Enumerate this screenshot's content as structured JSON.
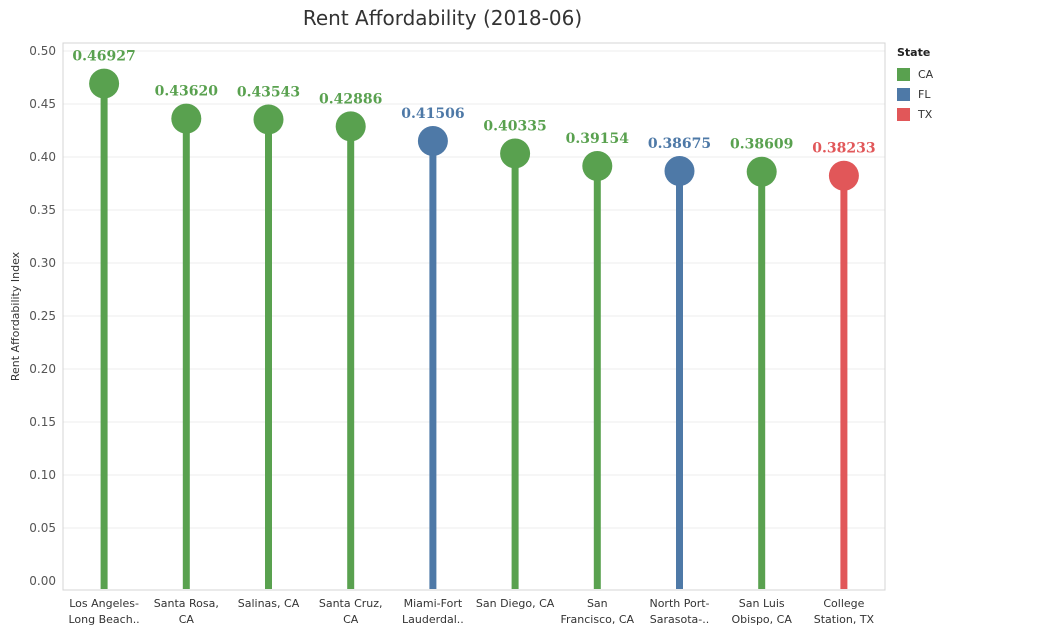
{
  "chart_data": {
    "type": "lollipop",
    "title": "Rent Affordability (2018-06)",
    "ylabel": "Rent Affordability Index",
    "xlabel": "",
    "ylim": [
      0,
      0.5
    ],
    "yticks": [
      "0.00",
      "0.05",
      "0.10",
      "0.15",
      "0.20",
      "0.25",
      "0.30",
      "0.35",
      "0.40",
      "0.45",
      "0.50"
    ],
    "grid": true,
    "legend_position": "right",
    "legend": {
      "title": "State",
      "entries": [
        {
          "label": "CA",
          "color": "#59a14f"
        },
        {
          "label": "FL",
          "color": "#4e79a7"
        },
        {
          "label": "TX",
          "color": "#e15759"
        }
      ]
    },
    "points": [
      {
        "category": [
          "Los Angeles-",
          "Long Beach.."
        ],
        "value": 0.46927,
        "label": "0.46927",
        "state": "CA"
      },
      {
        "category": [
          "Santa Rosa,",
          "CA"
        ],
        "value": 0.4362,
        "label": "0.43620",
        "state": "CA"
      },
      {
        "category": [
          "Salinas, CA"
        ],
        "value": 0.43543,
        "label": "0.43543",
        "state": "CA"
      },
      {
        "category": [
          "Santa Cruz,",
          "CA"
        ],
        "value": 0.42886,
        "label": "0.42886",
        "state": "CA"
      },
      {
        "category": [
          "Miami-Fort",
          "Lauderdal.."
        ],
        "value": 0.41506,
        "label": "0.41506",
        "state": "FL"
      },
      {
        "category": [
          "San Diego, CA"
        ],
        "value": 0.40335,
        "label": "0.40335",
        "state": "CA"
      },
      {
        "category": [
          "San",
          "Francisco, CA"
        ],
        "value": 0.39154,
        "label": "0.39154",
        "state": "CA"
      },
      {
        "category": [
          "North Port-",
          "Sarasota-.."
        ],
        "value": 0.38675,
        "label": "0.38675",
        "state": "FL"
      },
      {
        "category": [
          "San Luis",
          "Obispo, CA"
        ],
        "value": 0.38609,
        "label": "0.38609",
        "state": "CA"
      },
      {
        "category": [
          "College",
          "Station, TX"
        ],
        "value": 0.38233,
        "label": "0.38233",
        "state": "TX"
      }
    ]
  }
}
